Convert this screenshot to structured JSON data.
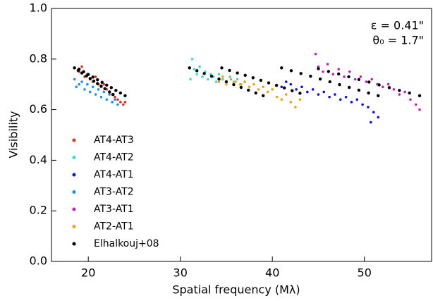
{
  "chart_data": {
    "type": "scatter",
    "xlabel": "Spatial frequency (Mλ)",
    "ylabel": "Visibility",
    "annotations": [
      "ε = 0.41\"",
      "θ₀ = 1.7\""
    ],
    "xlim": [
      16,
      57.3
    ],
    "ylim": [
      0,
      1
    ],
    "xticks": [
      20,
      30,
      40,
      50
    ],
    "yticks": [
      {
        "value": 0,
        "label": "0.0"
      },
      {
        "value": 0.2,
        "label": "0.2"
      },
      {
        "value": 0.4,
        "label": "0.4"
      },
      {
        "value": 0.6,
        "label": "0.6"
      },
      {
        "value": 0.8,
        "label": "0.8"
      },
      {
        "value": 1,
        "label": "1.0"
      }
    ],
    "legend": "lower left",
    "series": [
      {
        "name": "AT4-AT3",
        "color": "#e03020",
        "x": [
          19.0,
          19.3,
          19.6,
          19.9,
          20.2,
          20.5,
          20.8,
          21.1,
          21.4,
          21.7,
          22.0,
          22.3,
          22.6,
          22.9,
          23.2,
          23.5,
          23.8,
          24.0
        ],
        "values": [
          0.75,
          0.77,
          0.73,
          0.74,
          0.72,
          0.71,
          0.73,
          0.7,
          0.69,
          0.7,
          0.68,
          0.67,
          0.66,
          0.65,
          0.64,
          0.63,
          0.62,
          0.63
        ]
      },
      {
        "name": "AT4-AT2",
        "color": "#40d8d0",
        "x": [
          31.1,
          31.3,
          31.5,
          31.8,
          32.1,
          32.4,
          32.7,
          33.0,
          33.3,
          33.6,
          33.9,
          34.2,
          34.6,
          35.0,
          35.4,
          35.8,
          36.2,
          36.6,
          37.0
        ],
        "values": [
          0.72,
          0.8,
          0.76,
          0.74,
          0.77,
          0.73,
          0.75,
          0.72,
          0.74,
          0.73,
          0.71,
          0.74,
          0.72,
          0.71,
          0.73,
          0.71,
          0.72,
          0.7,
          0.71
        ]
      },
      {
        "name": "AT4-AT1",
        "color": "#1010e0",
        "x": [
          41.0,
          41.5,
          42.0,
          42.6,
          43.2,
          43.8,
          44.4,
          45.0,
          45.6,
          46.2,
          46.8,
          47.4,
          48.0,
          48.6,
          49.2,
          49.8,
          50.4,
          51.0,
          51.5,
          50.7
        ],
        "values": [
          0.69,
          0.71,
          0.7,
          0.68,
          0.69,
          0.67,
          0.68,
          0.66,
          0.67,
          0.65,
          0.66,
          0.64,
          0.65,
          0.63,
          0.64,
          0.62,
          0.61,
          0.59,
          0.57,
          0.55
        ]
      },
      {
        "name": "AT3-AT2",
        "color": "#2090f0",
        "x": [
          18.5,
          18.7,
          19.0,
          19.3,
          19.6,
          19.9,
          20.2,
          20.5,
          20.8,
          21.1,
          21.4,
          21.7,
          22.0,
          22.3,
          22.6,
          22.9,
          23.2
        ],
        "values": [
          0.72,
          0.69,
          0.7,
          0.71,
          0.68,
          0.7,
          0.67,
          0.69,
          0.66,
          0.68,
          0.65,
          0.67,
          0.64,
          0.66,
          0.63,
          0.64,
          0.62
        ]
      },
      {
        "name": "AT3-AT1",
        "color": "#c020c0",
        "x": [
          44.7,
          45.0,
          45.5,
          46.0,
          46.6,
          47.2,
          47.8,
          48.4,
          49.0,
          49.6,
          50.2,
          50.8,
          51.4,
          52.0,
          52.6,
          53.2,
          53.8,
          54.4,
          55.0,
          55.6,
          56.0
        ],
        "values": [
          0.82,
          0.77,
          0.75,
          0.78,
          0.74,
          0.76,
          0.73,
          0.75,
          0.72,
          0.73,
          0.71,
          0.72,
          0.7,
          0.69,
          0.7,
          0.68,
          0.66,
          0.67,
          0.64,
          0.62,
          0.6
        ]
      },
      {
        "name": "AT2-AT1",
        "color": "#f5a010",
        "x": [
          34.2,
          34.6,
          35.0,
          35.5,
          36.0,
          36.5,
          37.0,
          37.5,
          38.0,
          38.5,
          39.0,
          39.5,
          40.0,
          40.5,
          41.0,
          41.5,
          42.0,
          42.5,
          43.0
        ],
        "values": [
          0.71,
          0.73,
          0.7,
          0.72,
          0.71,
          0.7,
          0.71,
          0.69,
          0.7,
          0.68,
          0.69,
          0.67,
          0.68,
          0.65,
          0.64,
          0.66,
          0.63,
          0.61,
          0.64
        ]
      },
      {
        "name": "Elhalkouj+08",
        "color": "#000000",
        "x": [
          18.5,
          18.9,
          19.3,
          19.8,
          20.2,
          20.6,
          21.0,
          21.4,
          21.8,
          22.3,
          22.7,
          19.0,
          19.5,
          20.0,
          20.5,
          21.0,
          21.5,
          22.0,
          22.5,
          23.0,
          23.5,
          24.0,
          31.0,
          31.8,
          32.6,
          33.4,
          34.2,
          35.0,
          35.8,
          36.6,
          37.4,
          38.2,
          39.0,
          34.5,
          35.35,
          36.2,
          37.05,
          37.9,
          38.75,
          39.6,
          40.45,
          41.3,
          42.15,
          43.0,
          41.0,
          42.05,
          43.1,
          44.15,
          45.2,
          46.25,
          47.3,
          48.35,
          49.4,
          50.45,
          51.5,
          45.0,
          46.1,
          47.2,
          48.3,
          49.4,
          50.5,
          51.6,
          52.7,
          53.8,
          54.9,
          56.0
        ],
        "values": [
          0.765,
          0.755,
          0.745,
          0.733,
          0.723,
          0.713,
          0.703,
          0.693,
          0.683,
          0.67,
          0.66,
          0.76,
          0.75,
          0.739,
          0.729,
          0.718,
          0.708,
          0.697,
          0.687,
          0.676,
          0.666,
          0.655,
          0.765,
          0.754,
          0.743,
          0.732,
          0.721,
          0.71,
          0.699,
          0.688,
          0.677,
          0.666,
          0.655,
          0.765,
          0.755,
          0.745,
          0.736,
          0.726,
          0.716,
          0.706,
          0.696,
          0.686,
          0.675,
          0.665,
          0.765,
          0.754,
          0.743,
          0.732,
          0.721,
          0.71,
          0.699,
          0.688,
          0.677,
          0.666,
          0.655,
          0.762,
          0.751,
          0.741,
          0.73,
          0.719,
          0.709,
          0.698,
          0.687,
          0.676,
          0.666,
          0.655
        ]
      }
    ]
  }
}
